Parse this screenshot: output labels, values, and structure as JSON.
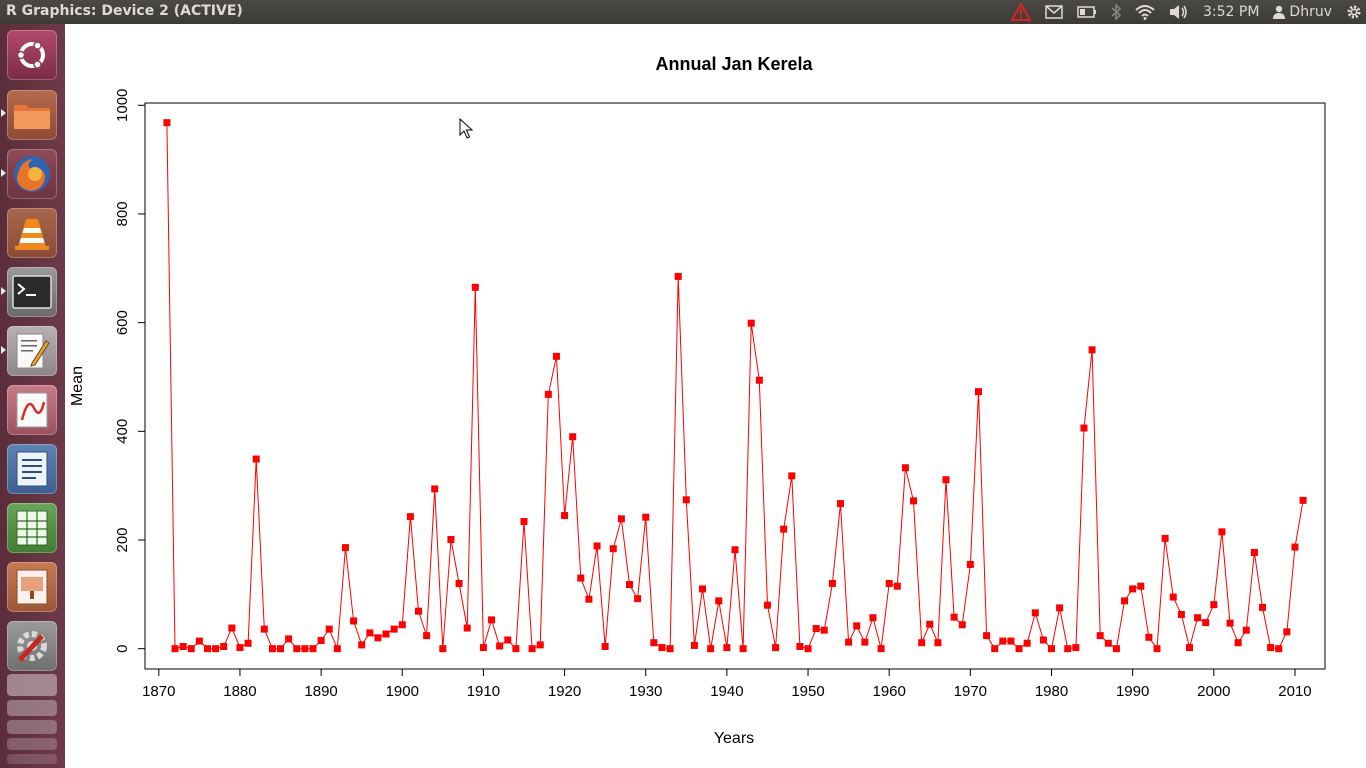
{
  "window": {
    "title": "R Graphics: Device 2 (ACTIVE)"
  },
  "panel": {
    "time": "3:52 PM",
    "user": "Dhruv"
  },
  "launcher": {
    "items": [
      {
        "name": "dash-home-button"
      },
      {
        "name": "files-launcher"
      },
      {
        "name": "firefox-launcher"
      },
      {
        "name": "vlc-launcher"
      },
      {
        "name": "terminal-launcher"
      },
      {
        "name": "text-editor-launcher"
      },
      {
        "name": "document-viewer-launcher"
      },
      {
        "name": "writer-launcher"
      },
      {
        "name": "calc-launcher"
      },
      {
        "name": "impress-launcher"
      },
      {
        "name": "system-settings-launcher"
      }
    ]
  },
  "chart_data": {
    "type": "line",
    "title": "Annual Jan Kerela",
    "xlabel": "Years",
    "ylabel": "Mean",
    "xlim": [
      1870,
      2011
    ],
    "ylim": [
      0,
      1000
    ],
    "xticks": [
      "1870",
      "1880",
      "1890",
      "1900",
      "1910",
      "1920",
      "1930",
      "1940",
      "1950",
      "1960",
      "1970",
      "1980",
      "1990",
      "2000",
      "2010"
    ],
    "yticks": [
      "0",
      "200",
      "400",
      "600",
      "800",
      "1000"
    ],
    "grid": false,
    "legend": "none",
    "line_color": "#ff0000",
    "marker": "filled-square",
    "series": [
      {
        "x": [
          1871,
          1872,
          1873,
          1874,
          1875,
          1876,
          1877,
          1878,
          1879,
          1880,
          1881,
          1882,
          1883,
          1884,
          1885,
          1886,
          1887,
          1888,
          1889,
          1890,
          1891,
          1892,
          1893,
          1894,
          1895,
          1896,
          1897,
          1898,
          1899,
          1900,
          1901,
          1902,
          1903,
          1904,
          1905,
          1906,
          1907,
          1908,
          1909,
          1910,
          1911,
          1912,
          1913,
          1914,
          1915,
          1916,
          1917,
          1918,
          1919,
          1920,
          1921,
          1922,
          1923,
          1924,
          1925,
          1926,
          1927,
          1928,
          1929,
          1930,
          1931,
          1932,
          1933,
          1934,
          1935,
          1936,
          1937,
          1938,
          1939,
          1940,
          1941,
          1942,
          1943,
          1944,
          1945,
          1946,
          1947,
          1948,
          1949,
          1950,
          1951,
          1952,
          1953,
          1954,
          1955,
          1956,
          1957,
          1958,
          1959,
          1960,
          1961,
          1962,
          1963,
          1964,
          1965,
          1966,
          1967,
          1968,
          1969,
          1970,
          1971,
          1972,
          1973,
          1974,
          1975,
          1976,
          1977,
          1978,
          1979,
          1980,
          1981,
          1982,
          1983,
          1984,
          1985,
          1986,
          1987,
          1988,
          1989,
          1990,
          1991,
          1992,
          1993,
          1994,
          1995,
          1996,
          1997,
          1998,
          1999,
          2000,
          2001,
          2002,
          2003,
          2004,
          2005,
          2006,
          2007,
          2008,
          2009,
          2010,
          2011
        ],
        "y": [
          968,
          0,
          4,
          0,
          14,
          0,
          0,
          4,
          38,
          2,
          10,
          349,
          36,
          0,
          0,
          18,
          0,
          0,
          0,
          15,
          36,
          0,
          186,
          51,
          7,
          29,
          20,
          27,
          36,
          44,
          243,
          69,
          24,
          294,
          0,
          201,
          120,
          38,
          665,
          2,
          53,
          5,
          16,
          0,
          234,
          0,
          7,
          468,
          538,
          245,
          390,
          130,
          91,
          189,
          4,
          184,
          239,
          118,
          92,
          242,
          11,
          2,
          0,
          685,
          274,
          6,
          110,
          0,
          88,
          2,
          182,
          0,
          599,
          494,
          80,
          2,
          220,
          318,
          4,
          0,
          37,
          34,
          120,
          267,
          12,
          42,
          12,
          57,
          0,
          120,
          115,
          333,
          272,
          11,
          45,
          11,
          311,
          58,
          44,
          155,
          473,
          24,
          0,
          14,
          14,
          0,
          10,
          66,
          16,
          0,
          75,
          0,
          2,
          406,
          550,
          24,
          10,
          0,
          88,
          110,
          115,
          21,
          0,
          203,
          95,
          63,
          2,
          57,
          48,
          81,
          215,
          47,
          11,
          34,
          177,
          76,
          2,
          0,
          31,
          187,
          273
        ]
      }
    ]
  }
}
